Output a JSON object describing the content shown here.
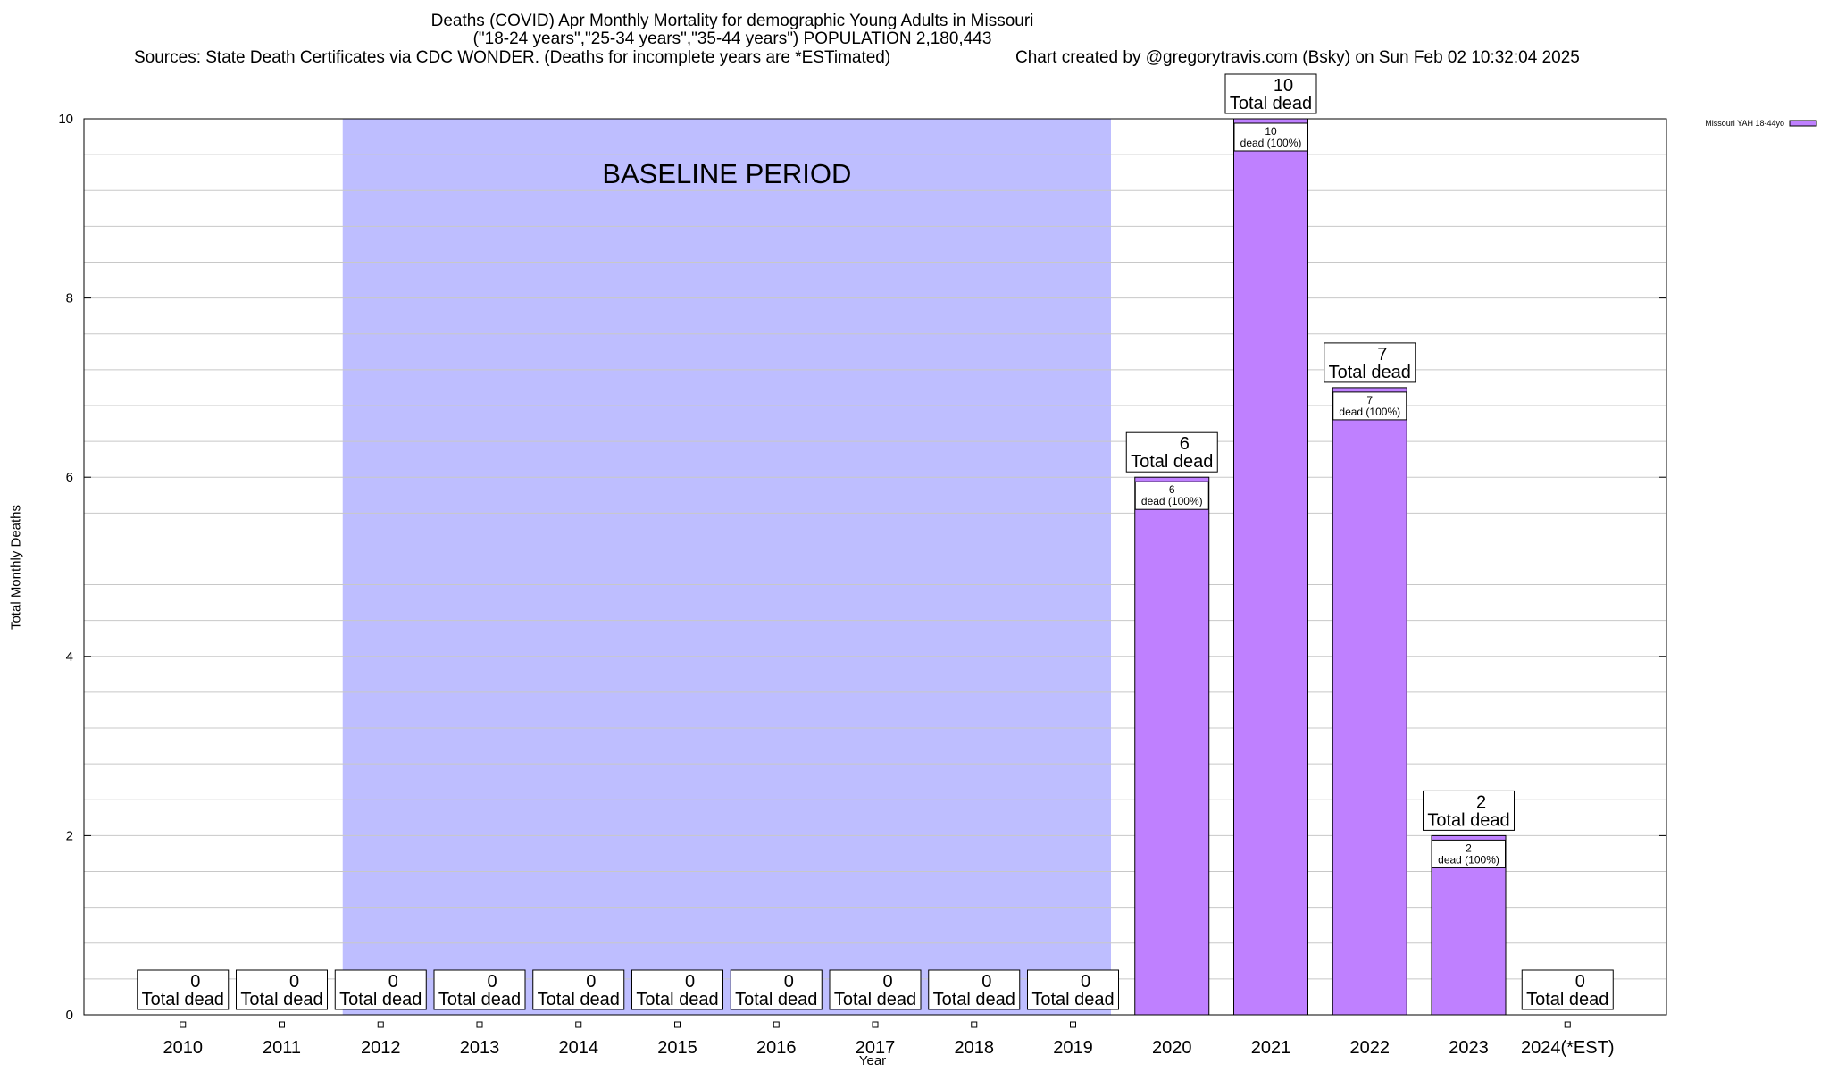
{
  "chart_data": {
    "type": "bar",
    "title": "Deaths (COVID) Apr Monthly Mortality for demographic Young Adults in Missouri",
    "subtitle": "(\"18-24 years\",\"25-34 years\",\"35-44 years\") POPULATION 2,180,443",
    "sources": "Sources: State Death Certificates via CDC WONDER. (Deaths for incomplete years are *ESTimated)",
    "credit": "Chart created by @gregorytravis.com (Bsky) on Sun Feb 02 10:32:04 2025",
    "xlabel": "Year",
    "ylabel": "Total Monthly Deaths",
    "ylim": [
      0,
      10
    ],
    "yticks": [
      "0",
      "2",
      "4",
      "6",
      "8",
      "10"
    ],
    "categories": [
      "2010",
      "2011",
      "2012",
      "2013",
      "2014",
      "2015",
      "2016",
      "2017",
      "2018",
      "2019",
      "2020",
      "2021",
      "2022",
      "2023",
      "2024(*EST)"
    ],
    "series": [
      {
        "name": "Missouri YAH 18-44yo",
        "color": "#bf80ff",
        "values": [
          0,
          0,
          0,
          0,
          0,
          0,
          0,
          0,
          0,
          0,
          6,
          10,
          7,
          2,
          0
        ]
      }
    ],
    "total_label": "Total dead",
    "inner_labels": [
      "",
      "",
      "",
      "",
      "",
      "",
      "",
      "",
      "",
      "",
      "dead (100%)",
      "dead (100%)",
      "dead (100%)",
      "dead (100%)",
      ""
    ],
    "baseline": {
      "label": "BASELINE PERIOD",
      "start": "2012",
      "end": "2019",
      "color": "#bebeff"
    },
    "legend": "Missouri YAH 18-44yo",
    "legend_position": "top-right"
  }
}
